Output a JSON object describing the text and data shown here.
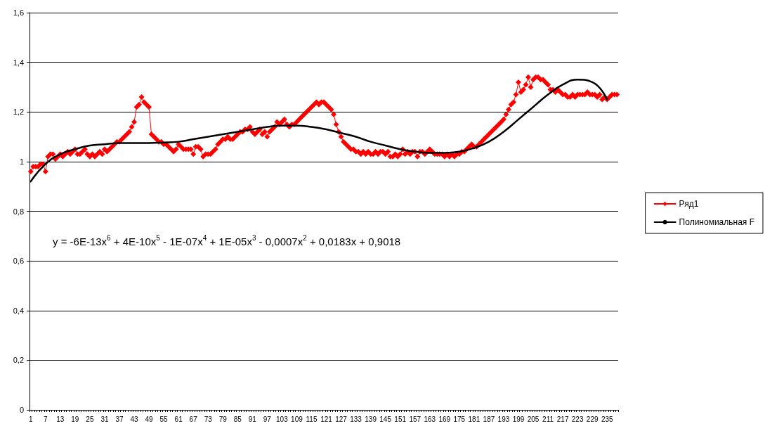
{
  "chart_data": {
    "type": "line",
    "categories": [
      "1",
      null,
      null,
      null,
      null,
      null,
      "7",
      null,
      null,
      null,
      null,
      null,
      "13",
      null,
      null,
      null,
      null,
      null,
      "19",
      null,
      null,
      null,
      null,
      null,
      "25",
      null,
      null,
      null,
      null,
      null,
      "31",
      null,
      null,
      null,
      null,
      null,
      "37",
      null,
      null,
      null,
      null,
      null,
      "43",
      null,
      null,
      null,
      null,
      null,
      "49",
      null,
      null,
      null,
      null,
      null,
      "55",
      null,
      null,
      null,
      null,
      null,
      "61",
      null,
      null,
      null,
      null,
      null,
      "67",
      null,
      null,
      null,
      null,
      null,
      "73",
      null,
      null,
      null,
      null,
      null,
      "79",
      null,
      null,
      null,
      null,
      null,
      "85",
      null,
      null,
      null,
      null,
      null,
      "91",
      null,
      null,
      null,
      null,
      null,
      "97",
      null,
      null,
      null,
      null,
      null,
      "103",
      null,
      null,
      null,
      null,
      null,
      "109",
      null,
      null,
      null,
      null,
      null,
      "115",
      null,
      null,
      null,
      null,
      null,
      "121",
      null,
      null,
      null,
      null,
      null,
      "127",
      null,
      null,
      null,
      null,
      null,
      "133",
      null,
      null,
      null,
      null,
      null,
      "139",
      null,
      null,
      null,
      null,
      null,
      "145",
      null,
      null,
      null,
      null,
      null,
      "151",
      null,
      null,
      null,
      null,
      null,
      "157",
      null,
      null,
      null,
      null,
      null,
      "163",
      null,
      null,
      null,
      null,
      null,
      "169",
      null,
      null,
      null,
      null,
      null,
      "175",
      null,
      null,
      null,
      null,
      null,
      "181",
      null,
      null,
      null,
      null,
      null,
      "187",
      null,
      null,
      null,
      null,
      null,
      "193",
      null,
      null,
      null,
      null,
      null,
      "199",
      null,
      null,
      null,
      null,
      null,
      "205",
      null,
      null,
      null,
      null,
      null,
      "211",
      null,
      null,
      null,
      null,
      null,
      "217",
      null,
      null,
      null,
      null,
      null,
      "223",
      null,
      null,
      null,
      null,
      null,
      "229",
      null,
      null,
      null,
      null,
      null,
      "235",
      null,
      null,
      null,
      null
    ],
    "series": [
      {
        "name": "Ряд1",
        "color": "#ff0000",
        "marker": "diamond",
        "values": [
          0.96,
          0.98,
          0.98,
          0.98,
          0.99,
          0.99,
          0.96,
          1.02,
          1.03,
          1.03,
          1.01,
          1.02,
          1.03,
          1.02,
          1.03,
          1.04,
          1.03,
          1.04,
          1.05,
          1.03,
          1.03,
          1.04,
          1.05,
          1.03,
          1.02,
          1.03,
          1.02,
          1.03,
          1.04,
          1.03,
          1.05,
          1.04,
          1.05,
          1.06,
          1.07,
          1.08,
          1.08,
          1.09,
          1.1,
          1.11,
          1.12,
          1.14,
          1.16,
          1.22,
          1.23,
          1.26,
          1.24,
          1.23,
          1.22,
          1.11,
          1.1,
          1.09,
          1.08,
          1.08,
          1.07,
          1.07,
          1.06,
          1.05,
          1.04,
          1.05,
          1.07,
          1.06,
          1.05,
          1.05,
          1.05,
          1.05,
          1.03,
          1.06,
          1.06,
          1.05,
          1.02,
          1.03,
          1.03,
          1.03,
          1.04,
          1.05,
          1.07,
          1.08,
          1.09,
          1.09,
          1.1,
          1.09,
          1.09,
          1.1,
          1.11,
          1.12,
          1.12,
          1.13,
          1.13,
          1.14,
          1.12,
          1.11,
          1.12,
          1.13,
          1.11,
          1.12,
          1.1,
          1.12,
          1.13,
          1.14,
          1.16,
          1.15,
          1.16,
          1.17,
          1.15,
          1.14,
          1.15,
          1.15,
          1.16,
          1.17,
          1.18,
          1.19,
          1.2,
          1.21,
          1.22,
          1.23,
          1.24,
          1.23,
          1.24,
          1.24,
          1.23,
          1.22,
          1.21,
          1.19,
          1.15,
          1.12,
          1.1,
          1.08,
          1.07,
          1.06,
          1.05,
          1.05,
          1.04,
          1.04,
          1.03,
          1.04,
          1.03,
          1.04,
          1.03,
          1.03,
          1.04,
          1.03,
          1.04,
          1.04,
          1.03,
          1.04,
          1.02,
          1.02,
          1.03,
          1.02,
          1.03,
          1.05,
          1.03,
          1.04,
          1.03,
          1.04,
          1.04,
          1.02,
          1.04,
          1.04,
          1.03,
          1.04,
          1.05,
          1.04,
          1.03,
          1.03,
          1.03,
          1.03,
          1.02,
          1.03,
          1.02,
          1.03,
          1.02,
          1.03,
          1.03,
          1.04,
          1.04,
          1.05,
          1.06,
          1.07,
          1.06,
          1.06,
          1.07,
          1.08,
          1.09,
          1.1,
          1.11,
          1.12,
          1.13,
          1.14,
          1.15,
          1.16,
          1.17,
          1.19,
          1.21,
          1.23,
          1.24,
          1.27,
          1.32,
          1.28,
          1.29,
          1.31,
          1.34,
          1.3,
          1.33,
          1.34,
          1.34,
          1.33,
          1.33,
          1.32,
          1.31,
          1.29,
          1.29,
          1.28,
          1.29,
          1.28,
          1.27,
          1.27,
          1.26,
          1.26,
          1.27,
          1.26,
          1.27,
          1.27,
          1.27,
          1.27,
          1.28,
          1.27,
          1.27,
          1.27,
          1.26,
          1.27,
          1.25,
          1.26,
          1.25,
          1.26,
          1.27,
          1.27,
          1.27
        ]
      },
      {
        "name": "Полиномиальная F",
        "color": "#000000",
        "marker": "none",
        "x": [
          "1",
          "7",
          "13",
          "19",
          "25",
          "31",
          "37",
          "43",
          "49",
          "55",
          "61",
          "67",
          "73",
          "79",
          "85",
          "91",
          "97",
          "103",
          "109",
          "115",
          "121",
          "127",
          "133",
          "139",
          "145",
          "151",
          "157",
          "163",
          "169",
          "175",
          "181",
          "187",
          "193",
          "199",
          "205",
          "211",
          "217",
          "223",
          "229",
          "235"
        ],
        "values": [
          0.92,
          0.99,
          1.03,
          1.05,
          1.065,
          1.07,
          1.075,
          1.075,
          1.075,
          1.077,
          1.08,
          1.09,
          1.1,
          1.11,
          1.12,
          1.13,
          1.14,
          1.145,
          1.145,
          1.14,
          1.13,
          1.115,
          1.1,
          1.08,
          1.065,
          1.05,
          1.04,
          1.035,
          1.035,
          1.04,
          1.055,
          1.08,
          1.12,
          1.17,
          1.22,
          1.27,
          1.31,
          1.33,
          1.32,
          1.25
        ]
      }
    ],
    "ylim": [
      0,
      1.6
    ],
    "yticks": [
      {
        "value": 0,
        "label": "0"
      },
      {
        "value": 0.2,
        "label": "0,2"
      },
      {
        "value": 0.4,
        "label": "0,4"
      },
      {
        "value": 0.6,
        "label": "0,6"
      },
      {
        "value": 0.8,
        "label": "0,8"
      },
      {
        "value": 1,
        "label": "1"
      },
      {
        "value": 1.2,
        "label": "1,2"
      },
      {
        "value": 1.4,
        "label": "1,4"
      },
      {
        "value": 1.6,
        "label": "1,6"
      }
    ],
    "grid": "y",
    "legend": "right",
    "line_style": "solid",
    "annotations": [
      "y = -6E-13x$^{6}$ + 4E-10x$^{5}$ - 1E-07x$^{4}$ + 1E-05x$^{3}$ - 0,0007x$^{2}$ + 0,0183x + 0,9018"
    ]
  }
}
